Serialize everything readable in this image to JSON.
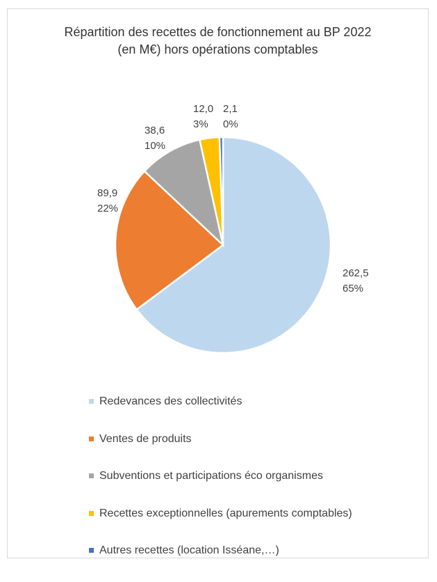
{
  "chart_data": {
    "type": "pie",
    "title_lines": [
      "Répartition des recettes de fonctionnement au BP 2022",
      "(en M€) hors opérations comptables"
    ],
    "slices": [
      {
        "name": "Redevances des collectivités",
        "value": 262.5,
        "value_label": "262,5",
        "percent_label": "65%",
        "color": "#bdd7ee"
      },
      {
        "name": "Ventes de produits",
        "value": 89.9,
        "value_label": "89,9",
        "percent_label": "22%",
        "color": "#ed7d31"
      },
      {
        "name": "Subventions et participations éco organismes",
        "value": 38.6,
        "value_label": "38,6",
        "percent_label": "10%",
        "color": "#a5a5a5"
      },
      {
        "name": "Recettes exceptionnelles (apurements comptables)",
        "value": 12.0,
        "value_label": "12,0",
        "percent_label": "3%",
        "color": "#ffc000"
      },
      {
        "name": "Autres recettes (location Isséane,…)",
        "value": 2.1,
        "value_label": "2,1",
        "percent_label": "0%",
        "color": "#4472c4"
      }
    ],
    "start_angle": "12 o'clock",
    "direction": "clockwise",
    "legend_position": "bottom"
  }
}
